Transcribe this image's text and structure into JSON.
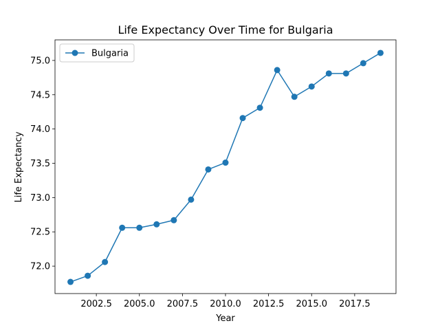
{
  "chart_data": {
    "type": "line",
    "title": "Life Expectancy Over Time for Bulgaria",
    "xlabel": "Year",
    "ylabel": "Life Expectancy",
    "xlim": [
      2000.1,
      2019.9
    ],
    "ylim": [
      71.6,
      75.3
    ],
    "xticks": [
      2002.5,
      2005.0,
      2007.5,
      2010.0,
      2012.5,
      2015.0,
      2017.5
    ],
    "xtick_labels": [
      "2002.5",
      "2005.0",
      "2007.5",
      "2010.0",
      "2012.5",
      "2015.0",
      "2017.5"
    ],
    "yticks": [
      72.0,
      72.5,
      73.0,
      73.5,
      74.0,
      74.5,
      75.0
    ],
    "ytick_labels": [
      "72.0",
      "72.5",
      "73.0",
      "73.5",
      "74.0",
      "74.5",
      "75.0"
    ],
    "grid": false,
    "legend_position": "top-left",
    "series": [
      {
        "name": "Bulgaria",
        "color": "#1f77b4",
        "marker": "circle",
        "x": [
          2001,
          2002,
          2003,
          2004,
          2005,
          2006,
          2007,
          2008,
          2009,
          2010,
          2011,
          2012,
          2013,
          2014,
          2015,
          2016,
          2017,
          2018,
          2019
        ],
        "y": [
          71.77,
          71.86,
          72.06,
          72.56,
          72.56,
          72.61,
          72.67,
          72.97,
          73.41,
          73.51,
          74.16,
          74.31,
          74.86,
          74.47,
          74.62,
          74.81,
          74.81,
          74.96,
          75.11
        ]
      }
    ]
  }
}
